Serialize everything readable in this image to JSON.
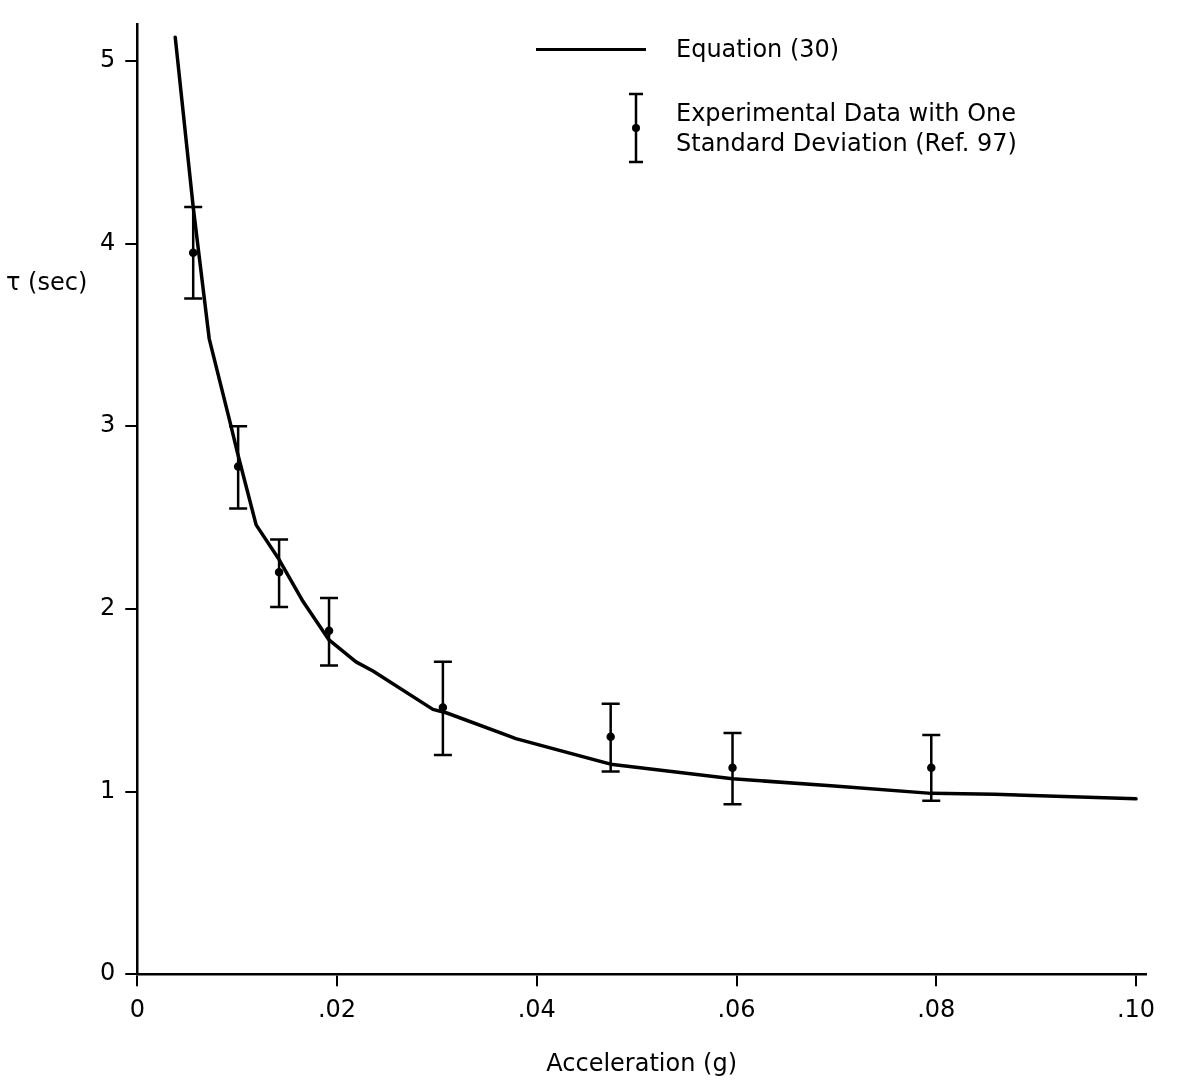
{
  "chart_data": {
    "type": "line",
    "xlabel": "Acceleration (g)",
    "ylabel": "τ (sec)",
    "xlim": [
      0,
      0.101
    ],
    "ylim": [
      0,
      5.2
    ],
    "xticks": [
      0,
      {
        "value": 0.02,
        "label": ".02"
      },
      {
        "value": 0.04,
        "label": ".04"
      },
      {
        "value": 0.06,
        "label": ".06"
      },
      {
        "value": 0.08,
        "label": ".08"
      },
      {
        "value": 0.1,
        "label": ".10"
      }
    ],
    "yticks": [
      0,
      1,
      2,
      3,
      4,
      5
    ],
    "grid": false,
    "legend": "top right",
    "line_style": "solid",
    "series": [
      {
        "name": "Equation (30)",
        "type": "line",
        "color": "#000000",
        "marker": "none",
        "x": [
          0.0038,
          0.0056,
          0.0072,
          0.0093,
          0.0101,
          0.0119,
          0.0142,
          0.0166,
          0.0192,
          0.0219,
          0.0236,
          0.0296,
          0.031,
          0.0379,
          0.0474,
          0.0596,
          0.0698,
          0.0795,
          0.0858,
          0.1
        ],
        "values": [
          5.13,
          4.2,
          3.48,
          3.02,
          2.84,
          2.46,
          2.27,
          2.04,
          1.83,
          1.71,
          1.66,
          1.45,
          1.43,
          1.29,
          1.15,
          1.07,
          1.03,
          0.99,
          0.985,
          0.96
        ]
      },
      {
        "name": "Experimental Data with One Standard Deviation (Ref. 97)",
        "type": "scatter",
        "color": "#000000",
        "x": [
          0.0056,
          0.0101,
          0.0142,
          0.0192,
          0.0306,
          0.0474,
          0.0596,
          0.0795
        ],
        "values": [
          3.95,
          2.78,
          2.2,
          1.88,
          1.46,
          1.3,
          1.13,
          1.13
        ],
        "errors": [
          [
            3.7,
            4.2
          ],
          [
            2.55,
            3.0
          ],
          [
            2.01,
            2.38
          ],
          [
            1.69,
            2.06
          ],
          [
            1.2,
            1.71
          ],
          [
            1.11,
            1.48
          ],
          [
            0.93,
            1.32
          ],
          [
            0.95,
            1.31
          ]
        ]
      }
    ]
  }
}
